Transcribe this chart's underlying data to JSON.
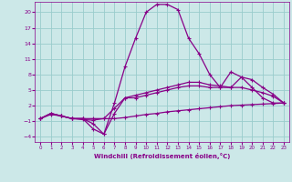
{
  "xlabel": "Windchill (Refroidissement éolien,°C)",
  "bg_color": "#cce8e8",
  "grid_color": "#99cccc",
  "line_color": "#880088",
  "xlim": [
    -0.5,
    23.5
  ],
  "ylim": [
    -5,
    22
  ],
  "xticks": [
    0,
    1,
    2,
    3,
    4,
    5,
    6,
    7,
    8,
    9,
    10,
    11,
    12,
    13,
    14,
    15,
    16,
    17,
    18,
    19,
    20,
    21,
    22,
    23
  ],
  "yticks": [
    -4,
    -1,
    2,
    5,
    8,
    11,
    14,
    17,
    20
  ],
  "lines": [
    {
      "x": [
        0,
        1,
        2,
        3,
        4,
        5,
        6,
        7,
        8,
        9,
        10,
        11,
        12,
        13,
        14,
        15,
        16,
        17,
        18,
        19,
        20,
        21,
        22,
        23
      ],
      "y": [
        -0.5,
        0.5,
        0.0,
        -0.5,
        -0.5,
        -0.5,
        -0.5,
        -0.5,
        -0.3,
        0.0,
        0.3,
        0.5,
        0.8,
        1.0,
        1.2,
        1.4,
        1.6,
        1.8,
        2.0,
        2.1,
        2.2,
        2.3,
        2.4,
        2.5
      ]
    },
    {
      "x": [
        0,
        1,
        2,
        3,
        4,
        5,
        6,
        7,
        8,
        9,
        10,
        11,
        12,
        13,
        14,
        15,
        16,
        17,
        18,
        19,
        20,
        21,
        22,
        23
      ],
      "y": [
        -0.5,
        0.3,
        0.0,
        -0.5,
        -0.7,
        -0.8,
        -0.5,
        1.5,
        3.5,
        3.5,
        4.0,
        4.5,
        5.0,
        5.5,
        5.8,
        5.8,
        5.5,
        5.5,
        5.5,
        5.5,
        5.0,
        4.5,
        3.8,
        2.5
      ]
    },
    {
      "x": [
        0,
        1,
        2,
        3,
        4,
        5,
        6,
        7,
        8,
        9,
        10,
        11,
        12,
        13,
        14,
        15,
        16,
        17,
        18,
        19,
        20,
        21,
        22,
        23
      ],
      "y": [
        -0.5,
        0.5,
        0.0,
        -0.5,
        -0.5,
        -2.5,
        -3.5,
        0.5,
        3.5,
        4.0,
        4.5,
        5.0,
        5.5,
        6.0,
        6.5,
        6.5,
        6.0,
        5.8,
        5.5,
        7.5,
        7.0,
        5.5,
        4.2,
        2.5
      ]
    },
    {
      "x": [
        0,
        1,
        2,
        3,
        4,
        5,
        6,
        7,
        8,
        9,
        10,
        11,
        12,
        13,
        14,
        15,
        16,
        17,
        18,
        19,
        20,
        21,
        22,
        23
      ],
      "y": [
        -0.5,
        0.5,
        0.0,
        -0.5,
        -0.5,
        -1.5,
        -3.5,
        2.5,
        9.5,
        15.0,
        20.0,
        21.5,
        21.5,
        20.5,
        15.0,
        12.0,
        8.0,
        5.5,
        8.5,
        7.5,
        5.5,
        3.5,
        2.5,
        2.5
      ]
    }
  ]
}
